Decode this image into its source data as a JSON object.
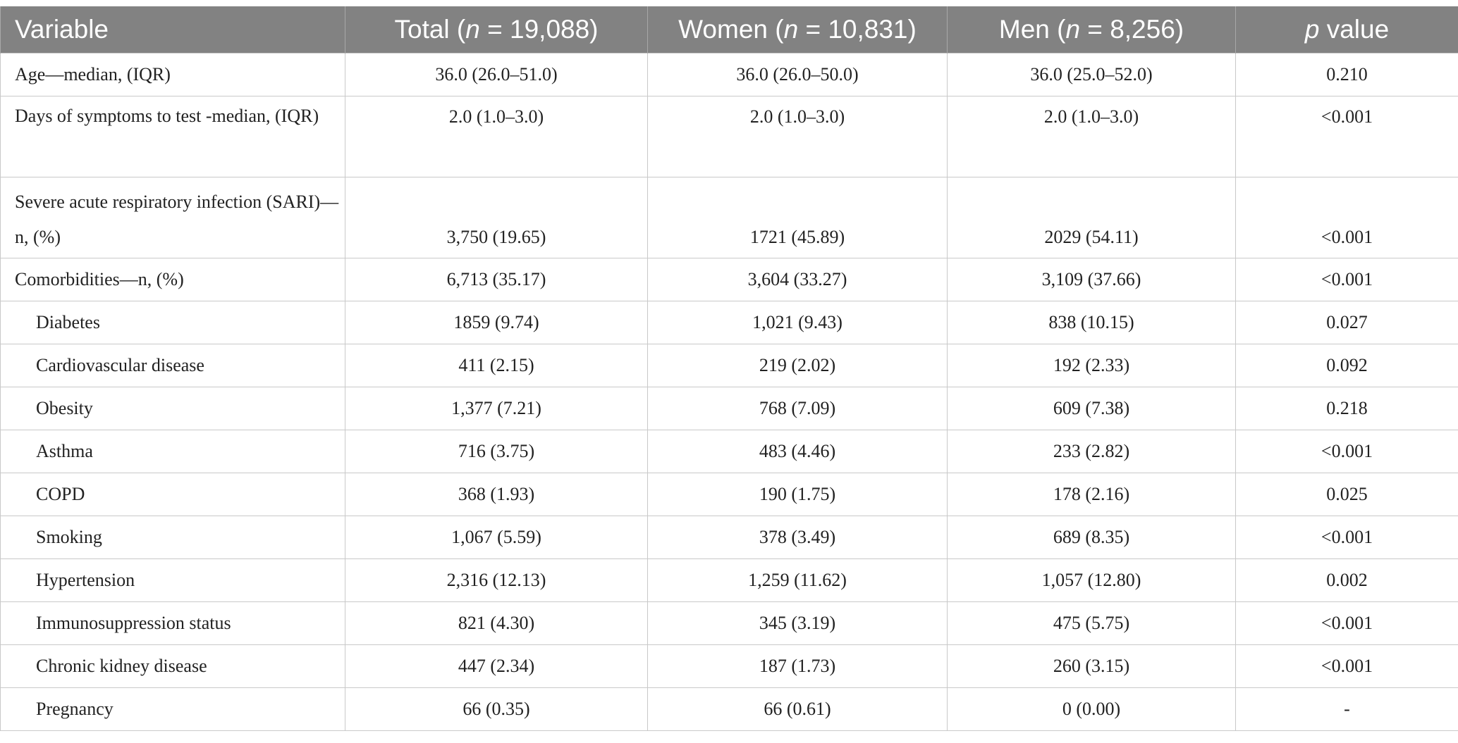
{
  "table": {
    "headers": {
      "variable": "Variable",
      "total": {
        "pre": "Total (",
        "n": "n",
        "post": " = 19,088)"
      },
      "women": {
        "pre": "Women (",
        "n": "n",
        "post": " = 10,831)"
      },
      "men": {
        "pre": "Men (",
        "n": "n",
        "post": " = 8,256)"
      },
      "p": {
        "p": "p",
        "post": " value"
      }
    },
    "rows": [
      {
        "label": "Age—median, (IQR)",
        "total": "36.0 (26.0–51.0)",
        "women": "36.0 (26.0–50.0)",
        "men": "36.0 (25.0–52.0)",
        "p": "0.210"
      },
      {
        "label": "Days of symptoms to test -median, (IQR)",
        "total": "2.0 (1.0–3.0)",
        "women": "2.0 (1.0–3.0)",
        "men": "2.0 (1.0–3.0)",
        "p": "<0.001"
      },
      {
        "label": "Severe acute respiratory infection (SARI)—n, (%)",
        "total": "3,750 (19.65)",
        "women": "1721 (45.89)",
        "men": "2029 (54.11)",
        "p": "<0.001"
      },
      {
        "label": "Comorbidities—n, (%)",
        "total": "6,713 (35.17)",
        "women": "3,604 (33.27)",
        "men": "3,109 (37.66)",
        "p": "<0.001"
      },
      {
        "label": "Diabetes",
        "total": "1859 (9.74)",
        "women": "1,021 (9.43)",
        "men": "838 (10.15)",
        "p": "0.027"
      },
      {
        "label": "Cardiovascular disease",
        "total": "411 (2.15)",
        "women": "219 (2.02)",
        "men": "192 (2.33)",
        "p": "0.092"
      },
      {
        "label": "Obesity",
        "total": "1,377 (7.21)",
        "women": "768 (7.09)",
        "men": "609 (7.38)",
        "p": "0.218"
      },
      {
        "label": "Asthma",
        "total": "716 (3.75)",
        "women": "483 (4.46)",
        "men": "233 (2.82)",
        "p": "<0.001"
      },
      {
        "label": "COPD",
        "total": "368 (1.93)",
        "women": "190 (1.75)",
        "men": "178 (2.16)",
        "p": "0.025"
      },
      {
        "label": "Smoking",
        "total": "1,067 (5.59)",
        "women": "378 (3.49)",
        "men": "689 (8.35)",
        "p": "<0.001"
      },
      {
        "label": "Hypertension",
        "total": "2,316 (12.13)",
        "women": "1,259 (11.62)",
        "men": "1,057 (12.80)",
        "p": "0.002"
      },
      {
        "label": "Immunosuppression status",
        "total": "821 (4.30)",
        "women": "345 (3.19)",
        "men": "475 (5.75)",
        "p": "<0.001"
      },
      {
        "label": "Chronic kidney disease",
        "total": "447 (2.34)",
        "women": "187 (1.73)",
        "men": "260 (3.15)",
        "p": "<0.001"
      },
      {
        "label": "Pregnancy",
        "total": "66 (0.35)",
        "women": "66 (0.61)",
        "men": "0 (0.00)",
        "p": "-"
      }
    ]
  },
  "colors": {
    "header_bg": "#828282",
    "header_text": "#ffffff",
    "grid": "#c9c9c9",
    "body_text": "#222222"
  }
}
